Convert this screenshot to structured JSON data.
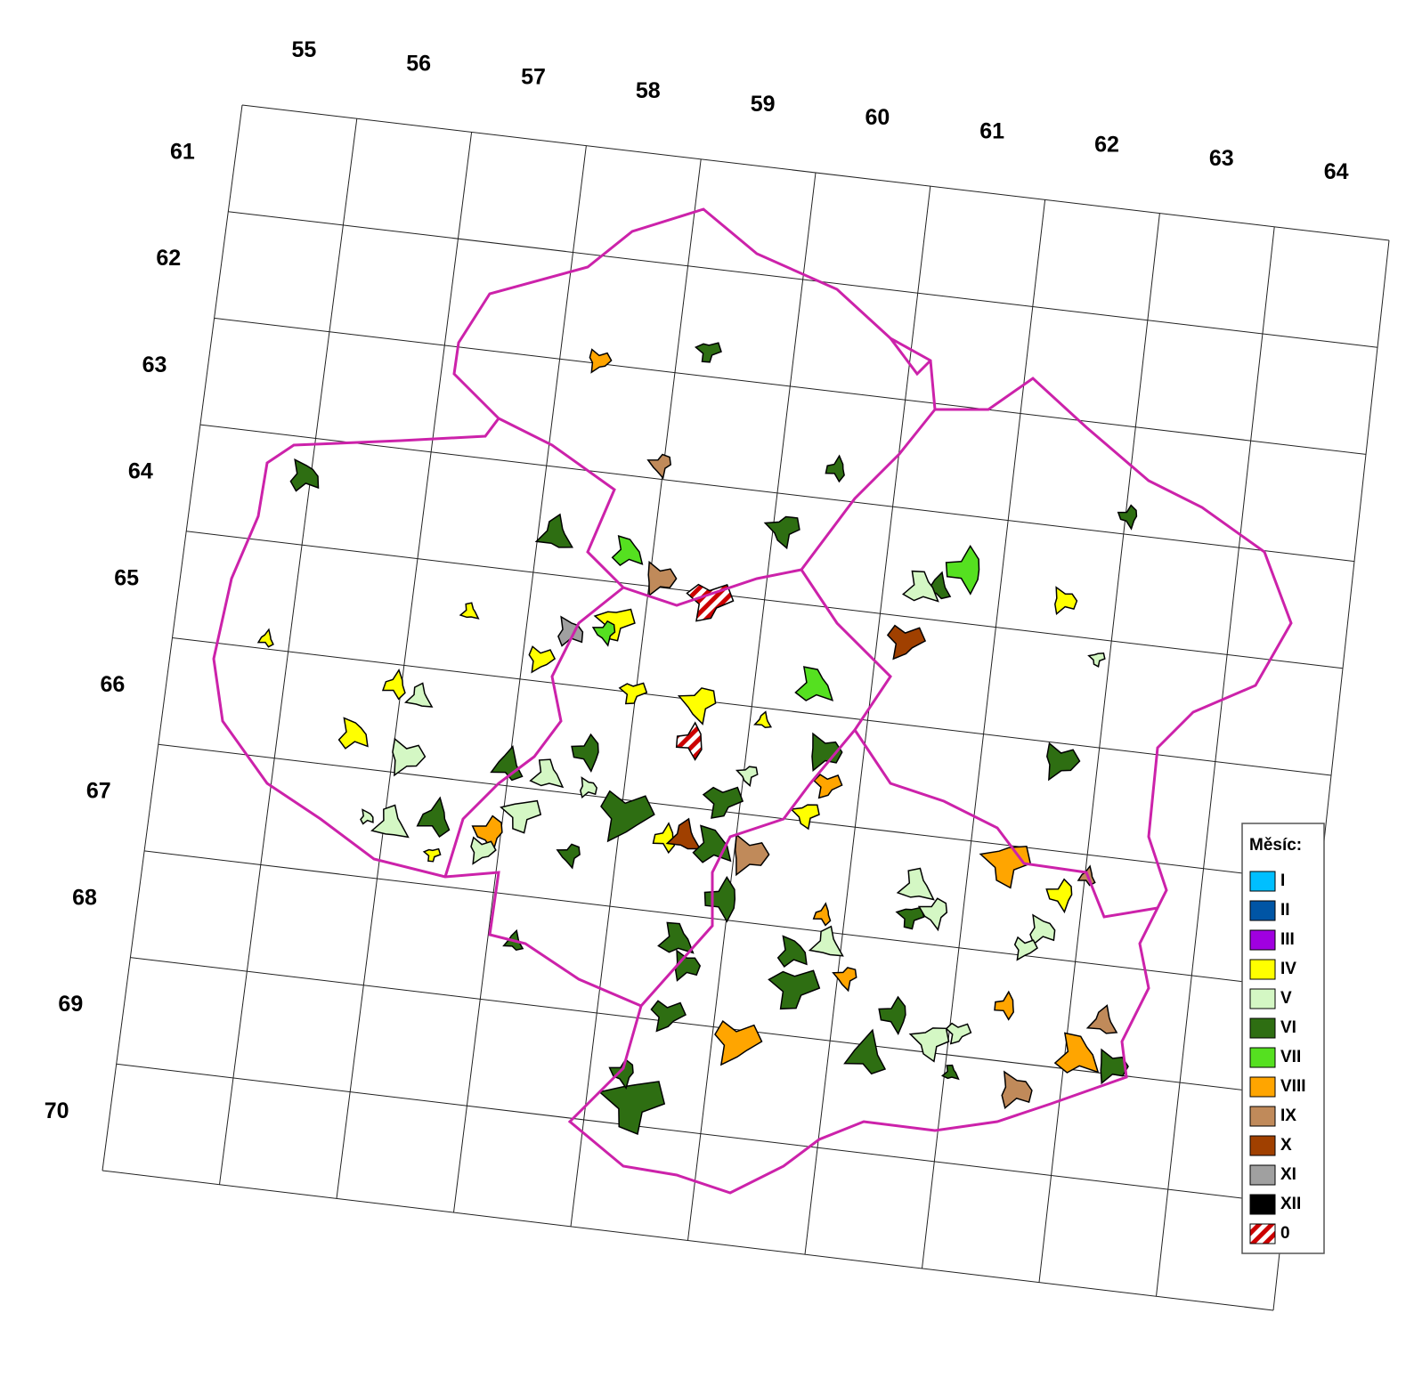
{
  "grid": {
    "columns": [
      "55",
      "56",
      "57",
      "58",
      "59",
      "60",
      "61",
      "62",
      "63",
      "64"
    ],
    "rows": [
      "61",
      "62",
      "63",
      "64",
      "65",
      "66",
      "67",
      "68",
      "69",
      "70"
    ]
  },
  "legend": {
    "title": "Měsíc:",
    "items": [
      {
        "label": "I",
        "color": "#00bfff"
      },
      {
        "label": "II",
        "color": "#0055a5"
      },
      {
        "label": "III",
        "color": "#a000e0"
      },
      {
        "label": "IV",
        "color": "#ffff00"
      },
      {
        "label": "V",
        "color": "#d4f7c4"
      },
      {
        "label": "VI",
        "color": "#2e6e12"
      },
      {
        "label": "VII",
        "color": "#55e020"
      },
      {
        "label": "VIII",
        "color": "#ffa500"
      },
      {
        "label": "IX",
        "color": "#c08a5a"
      },
      {
        "label": "X",
        "color": "#a04000"
      },
      {
        "label": "XI",
        "color": "#a0a0a0"
      },
      {
        "label": "XII",
        "color": "#000000"
      },
      {
        "label": "0",
        "color": "#cc0000",
        "pattern": "hatch"
      }
    ]
  }
}
